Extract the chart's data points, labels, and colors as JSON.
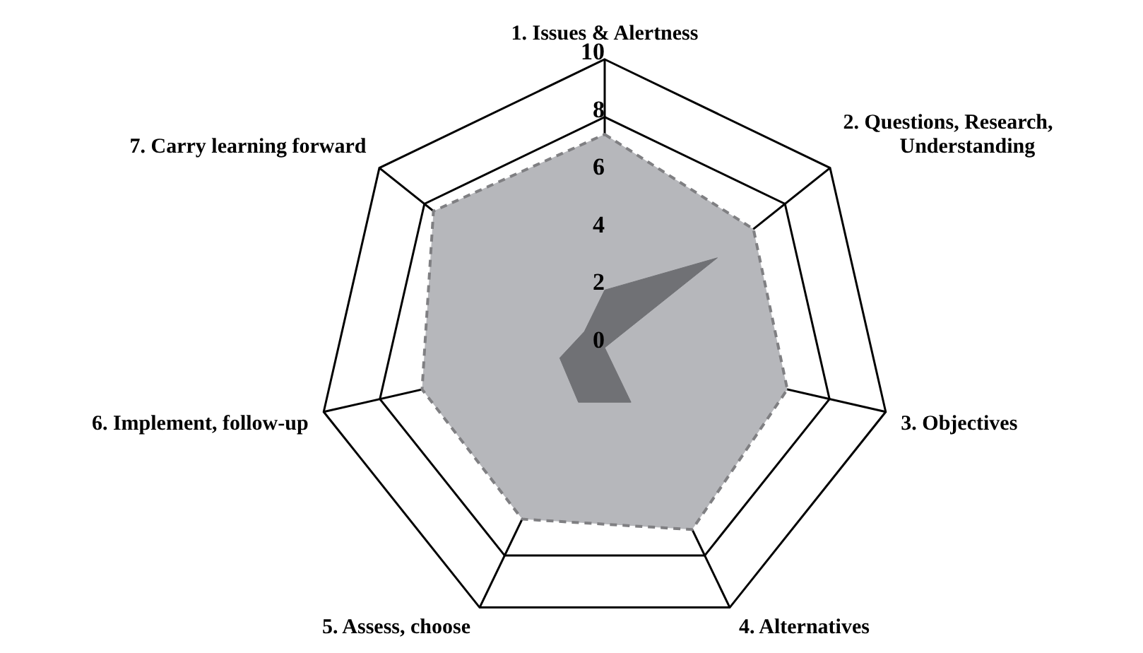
{
  "chart_data": {
    "type": "radar",
    "categories": [
      "1. Issues & Alertness",
      "2. Questions, Research, Understanding",
      "3. Objectives",
      "4. Alternatives",
      "5. Assess, choose",
      "6. Implement, follow-up",
      "7. Carry learning forward"
    ],
    "series": [
      {
        "color": "#b6b7bb",
        "values": [
          7.4,
          6.6,
          6.5,
          7,
          6.6,
          6.5,
          7.6
        ],
        "line_style": "dashed"
      },
      {
        "color": "#707175",
        "values": [
          2,
          5,
          0,
          2.1,
          2.1,
          1.6,
          0.9
        ],
        "line_style": "solid"
      }
    ],
    "ylim": [
      0,
      10
    ],
    "yticks": [
      0,
      2,
      4,
      6,
      8,
      10
    ],
    "grid": true
  }
}
